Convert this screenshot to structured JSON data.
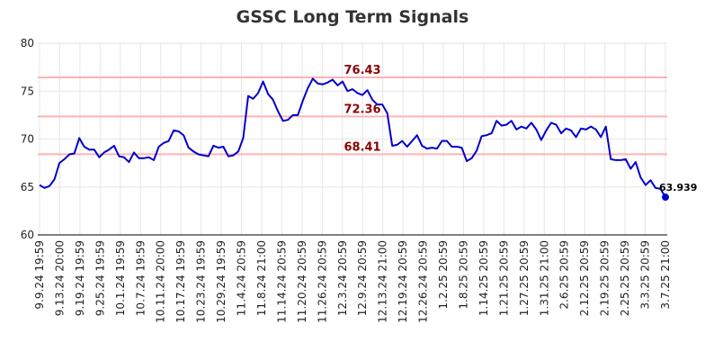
{
  "chart_data": {
    "type": "line",
    "title": "GSSC Long Term Signals",
    "ylim": [
      60,
      80
    ],
    "yticks": [
      60,
      65,
      70,
      75,
      80
    ],
    "grid": true,
    "line_color": "#0000cc",
    "level_line_color": "#ffb3b3",
    "annotation_color": "#8b0000",
    "x_tick_labels": [
      "9.9.24 19:59",
      "9.13.24 20:00",
      "9.19.24 19:59",
      "9.25.24 19:59",
      "10.1.24 19:59",
      "10.7.24 19:59",
      "10.11.24 20:00",
      "10.17.24 19:59",
      "10.23.24 19:59",
      "10.29.24 19:59",
      "11.4.24 20:59",
      "11.8.24 21:00",
      "11.14.24 20:59",
      "11.20.24 20:59",
      "11.26.24 20:59",
      "12.3.24 20:59",
      "12.9.24 20:59",
      "12.13.24 21:00",
      "12.19.24 20:59",
      "12.26.24 20:59",
      "1.2.25 20:59",
      "1.8.25 20:59",
      "1.14.25 20:59",
      "1.21.25 20:59",
      "1.27.25 20:59",
      "1.31.25 21:00",
      "2.6.25 20:59",
      "2.12.25 20:59",
      "2.19.25 20:59",
      "2.25.25 20:59",
      "3.3.25 20:59",
      "3.7.25 21:00"
    ],
    "levels": [
      {
        "value": 76.43,
        "label": "76.43"
      },
      {
        "value": 72.36,
        "label": "72.36"
      },
      {
        "value": 68.41,
        "label": "68.41"
      }
    ],
    "last_value_label": "63.939",
    "series": [
      {
        "values": [
          65.2,
          64.9,
          65.1,
          65.8,
          67.5,
          67.9,
          68.4,
          68.5,
          70.1,
          69.2,
          68.9,
          68.9,
          68.1,
          68.6,
          68.9,
          69.3,
          68.2,
          68.1,
          67.6,
          68.6,
          68.0,
          68.0,
          68.1,
          67.8,
          69.2,
          69.6,
          69.8,
          70.9,
          70.8,
          70.4,
          69.1,
          68.7,
          68.4,
          68.3,
          68.2,
          69.3,
          69.1,
          69.2,
          68.2,
          68.3,
          68.7,
          70.1,
          74.5,
          74.2,
          74.8,
          76.0,
          74.7,
          74.1,
          72.9,
          71.9,
          72.0,
          72.5,
          72.5,
          74.0,
          75.3,
          76.3,
          75.8,
          75.7,
          75.9,
          76.2,
          75.6,
          76.0,
          75.0,
          75.2,
          74.8,
          74.6,
          75.1,
          74.1,
          73.6,
          73.6,
          72.7,
          69.3,
          69.4,
          69.8,
          69.2,
          69.8,
          70.4,
          69.3,
          69.0,
          69.1,
          69.0,
          69.8,
          69.8,
          69.2,
          69.2,
          69.1,
          67.7,
          68.0,
          68.8,
          70.3,
          70.4,
          70.6,
          71.9,
          71.4,
          71.5,
          71.9,
          71.0,
          71.3,
          71.1,
          71.7,
          71.0,
          69.9,
          70.9,
          71.7,
          71.5,
          70.6,
          71.1,
          70.9,
          70.2,
          71.1,
          71.0,
          71.3,
          71.0,
          70.2,
          71.3,
          67.9,
          67.8,
          67.8,
          67.9,
          66.9,
          67.6,
          66.0,
          65.2,
          65.7,
          64.9,
          64.8,
          63.939
        ]
      }
    ]
  }
}
